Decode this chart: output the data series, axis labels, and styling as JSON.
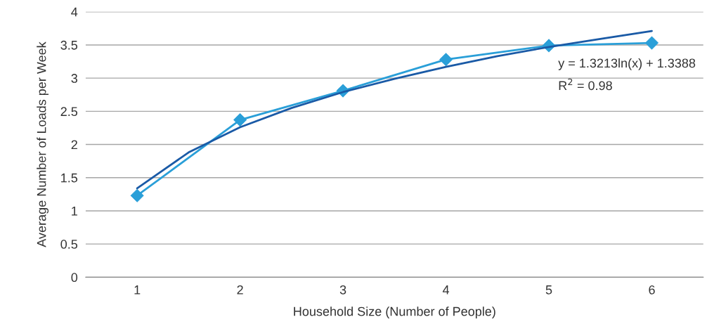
{
  "chart_data": {
    "type": "line",
    "xlabel": "Household Size (Number of People)",
    "ylabel": "Average Number of Loads per Week",
    "x": [
      1,
      2,
      3,
      4,
      5,
      6
    ],
    "xlim": [
      0.5,
      6.5
    ],
    "xticks": [
      1,
      2,
      3,
      4,
      5,
      6
    ],
    "ylim": [
      0,
      4
    ],
    "yticks": [
      0,
      0.5,
      1,
      1.5,
      2,
      2.5,
      3,
      3.5,
      4
    ],
    "grid": "y",
    "series": [
      {
        "color": "#2a9fd8",
        "marker": "diamond",
        "values": [
          1.23,
          2.37,
          2.81,
          3.28,
          3.49,
          3.53
        ]
      },
      {
        "color": "#1a5aa6",
        "marker": "none",
        "x": [
          1,
          1.5,
          2,
          2.5,
          3,
          3.5,
          4,
          4.5,
          5,
          5.5,
          6
        ],
        "values": [
          1.34,
          1.88,
          2.26,
          2.55,
          2.79,
          2.99,
          3.17,
          3.33,
          3.47,
          3.59,
          3.71
        ]
      }
    ],
    "annotations": [
      "y = 1.3213ln(x) + 1.3388",
      "R$^{2}$ = 0.98"
    ]
  }
}
